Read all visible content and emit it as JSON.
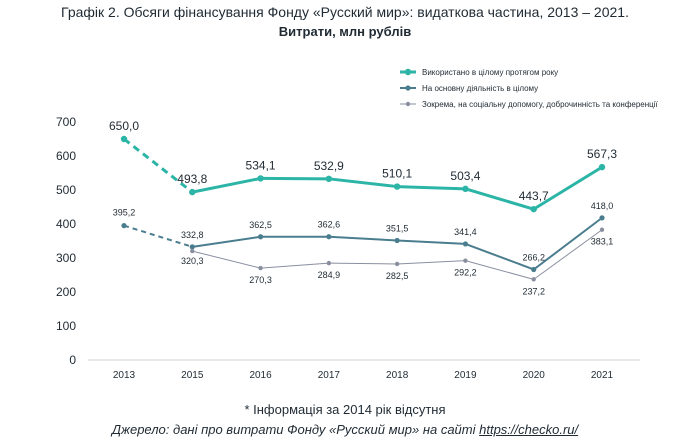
{
  "header": {
    "title": "Графік 2. Обсяги фінансування Фонду «Русский мир»: видаткова частина, 2013 – 2021.",
    "subtitle": "Витрати, млн рублів"
  },
  "footer": {
    "note": "* Інформація за 2014 рік відсутня",
    "source_prefix": "Джерело: дані про витрати Фонду «Русский мир» на сайті ",
    "source_link": "https://checko.ru/"
  },
  "chart_data": {
    "type": "line",
    "categories": [
      "2013",
      "2015",
      "2016",
      "2017",
      "2018",
      "2019",
      "2020",
      "2021"
    ],
    "ylim": [
      0,
      700
    ],
    "yticks": [
      0,
      100,
      200,
      300,
      400,
      500,
      600,
      700
    ],
    "grid": false,
    "legend_position": "top-right",
    "series": [
      {
        "name": "Використано в цілому протягом року",
        "color": "#2cb5a6",
        "values": [
          650.0,
          493.8,
          534.1,
          532.9,
          510.1,
          503.4,
          443.7,
          567.3
        ],
        "labels": [
          "650,0",
          "493,8",
          "534,1",
          "532,9",
          "510,1",
          "503,4",
          "443,7",
          "567,3"
        ],
        "dashed_first_segment": true
      },
      {
        "name": "На основну діяльність в цілому",
        "color": "#4a7d8e",
        "values": [
          395.2,
          332.8,
          362.5,
          362.6,
          351.5,
          341.4,
          266.2,
          418.0
        ],
        "labels": [
          "395,2",
          "332,8",
          "362,5",
          "362,6",
          "351,5",
          "341,4",
          "266,2",
          "418,0"
        ],
        "dashed_first_segment": true
      },
      {
        "name": "Зокрема, на соціальну допомогу, доброчинність та конференції",
        "color": "#8a8fa0",
        "values": [
          null,
          320.3,
          270.3,
          284.9,
          282.5,
          292.2,
          237.2,
          383.1
        ],
        "labels": [
          "",
          "320,3",
          "270,3",
          "284,9",
          "282,5",
          "292,2",
          "237,2",
          "383,1"
        ],
        "dashed_first_segment": false
      }
    ]
  }
}
